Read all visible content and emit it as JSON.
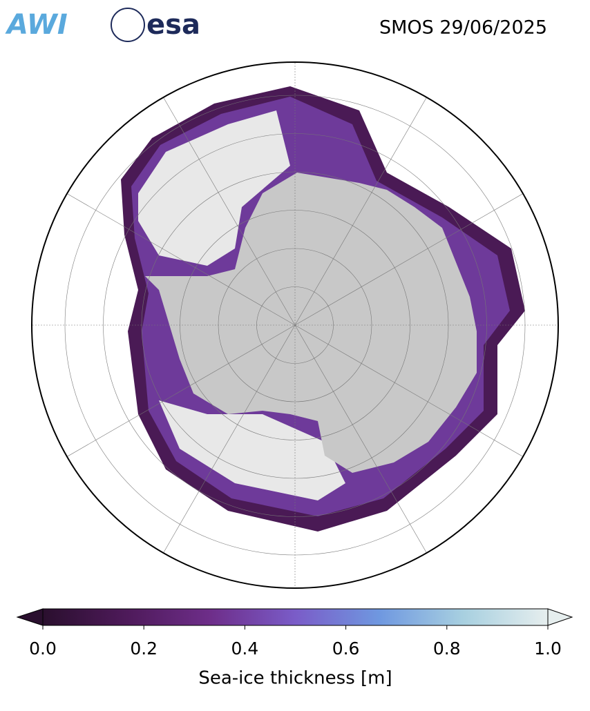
{
  "header": {
    "logos": [
      "AWI",
      "esa"
    ],
    "title": "SMOS 29/06/2025"
  },
  "colorbar": {
    "label": "Sea-ice thickness [m]",
    "lim": [
      0,
      1
    ],
    "ticks": [
      {
        "value": 0,
        "label": "0.0"
      },
      {
        "value": 0.2,
        "label": "0.2"
      },
      {
        "value": 0.4,
        "label": "0.4"
      },
      {
        "value": 0.6,
        "label": "0.6"
      },
      {
        "value": 0.8,
        "label": "0.8"
      },
      {
        "value": 1,
        "label": "1.0"
      }
    ],
    "colors": [
      "#2a0f2e",
      "#4e1a5a",
      "#6e2e8a",
      "#7a5cc8",
      "#6f98e0",
      "#a8d0e0",
      "#e6eeee"
    ],
    "extend": "both"
  }
}
